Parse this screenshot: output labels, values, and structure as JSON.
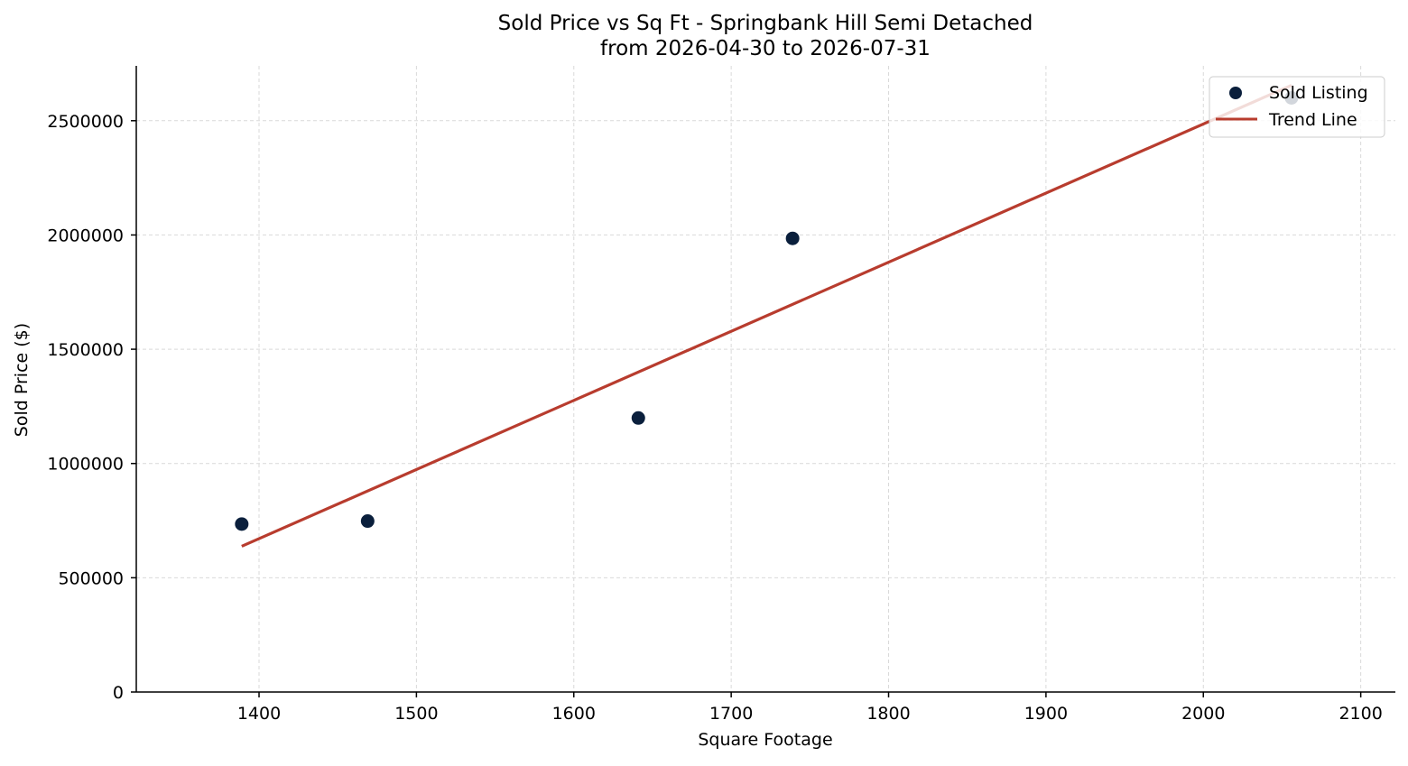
{
  "chart_data": {
    "type": "scatter",
    "title": "Sold Price vs Sq Ft - Springbank Hill Semi Detached",
    "subtitle": "from 2026-04-30 to 2026-07-31",
    "xlabel": "Square Footage",
    "ylabel": "Sold Price ($)",
    "xlim": [
      1322,
      2122
    ],
    "ylim": [
      0,
      2740000
    ],
    "x_ticks": [
      1400,
      1500,
      1600,
      1700,
      1800,
      1900,
      2000,
      2100
    ],
    "y_ticks": [
      0,
      500000,
      1000000,
      1500000,
      2000000,
      2500000
    ],
    "grid": true,
    "legend_position": "top-right",
    "series": [
      {
        "name": "Sold Listing",
        "kind": "scatter",
        "color": "#0a1f3c",
        "points": [
          {
            "x": 1389,
            "y": 735000
          },
          {
            "x": 1469,
            "y": 748000
          },
          {
            "x": 1641,
            "y": 1199000
          },
          {
            "x": 1739,
            "y": 1985000
          },
          {
            "x": 2056,
            "y": 2600000
          }
        ]
      },
      {
        "name": "Trend Line",
        "kind": "line",
        "color": "#b83c2e",
        "points": [
          {
            "x": 1389,
            "y": 638000
          },
          {
            "x": 2056,
            "y": 2655000
          }
        ]
      }
    ]
  }
}
